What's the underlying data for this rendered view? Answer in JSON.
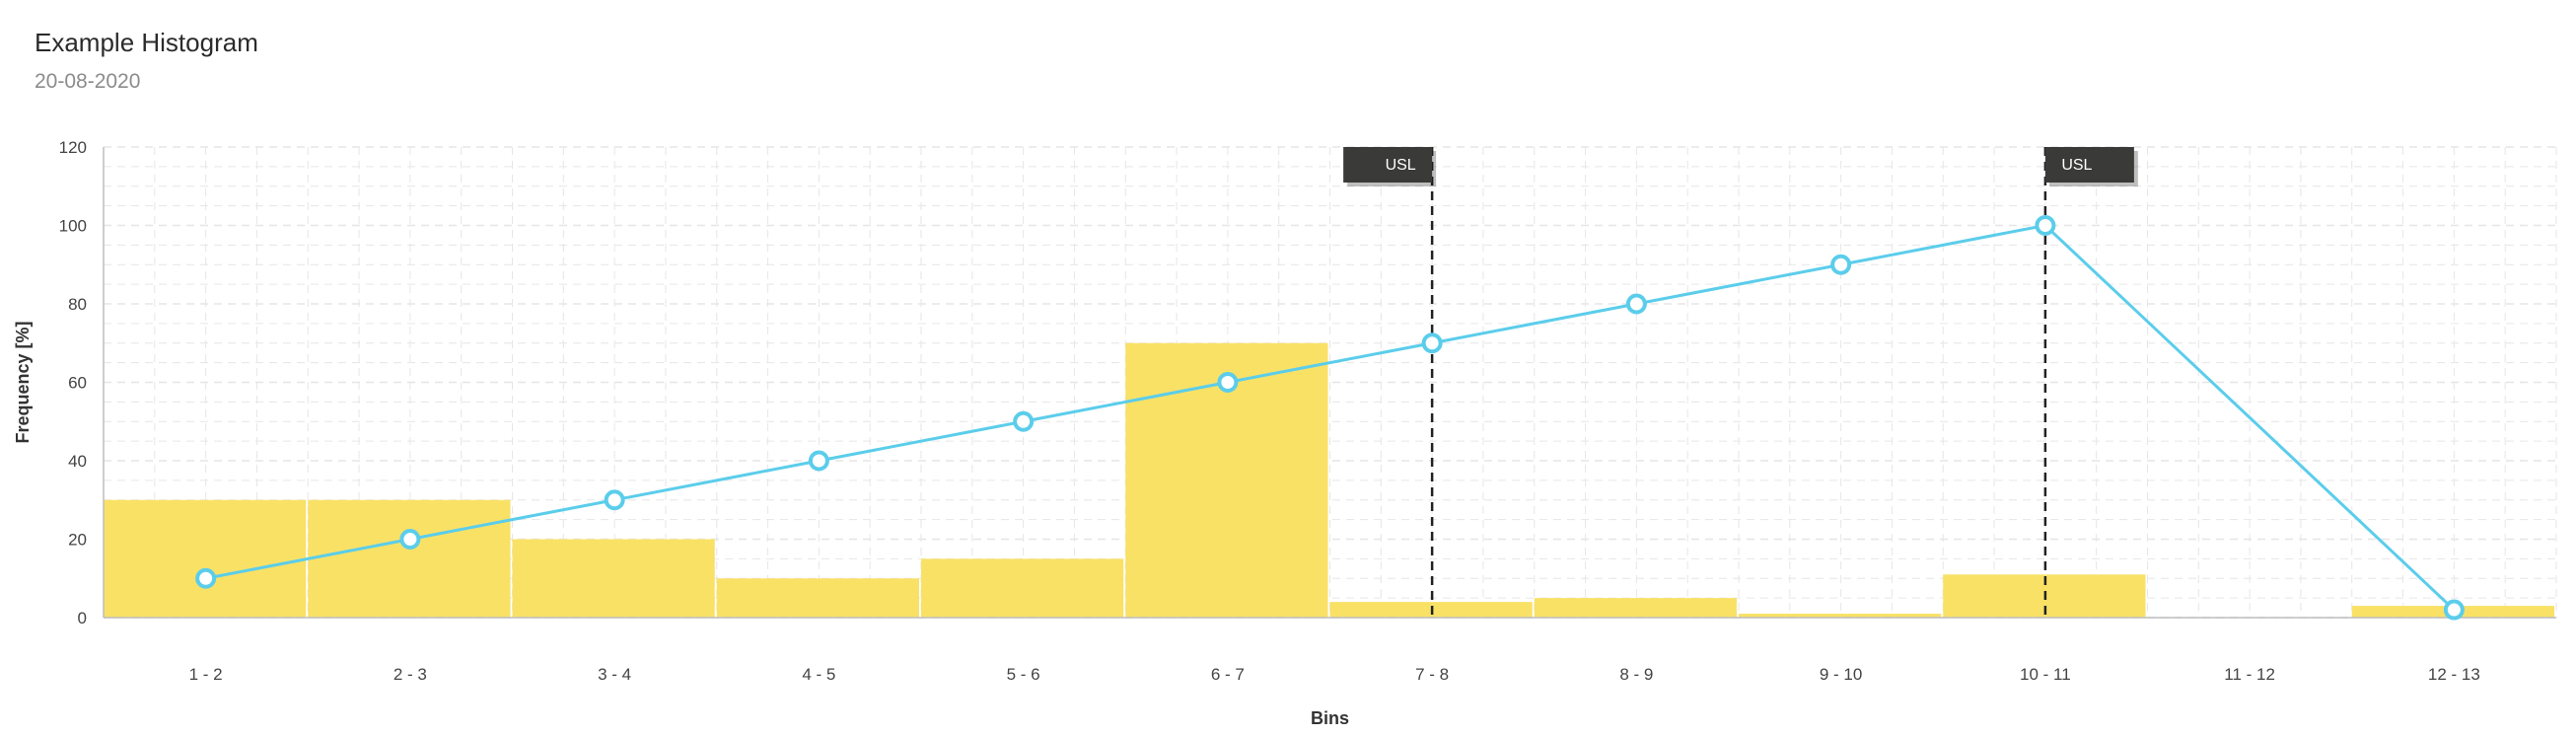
{
  "header": {
    "title": "Example Histogram",
    "subtitle": "20-08-2020"
  },
  "colors": {
    "bar": "#F9E166",
    "line": "#5BCDEB",
    "marker_label_bg": "#3A3A38",
    "grid": "#e6e6e6"
  },
  "chart_data": {
    "type": "bar",
    "categories": [
      "1 - 2",
      "2 - 3",
      "3 - 4",
      "4 - 5",
      "5 - 6",
      "6 - 7",
      "7 - 8",
      "8 - 9",
      "9 - 10",
      "10 - 11",
      "11 - 12",
      "12 - 13"
    ],
    "series": [
      {
        "type": "bar",
        "values": [
          30,
          30,
          20,
          10,
          15,
          70,
          4,
          5,
          1,
          11,
          0,
          3
        ]
      },
      {
        "type": "line",
        "values": [
          10,
          20,
          30,
          40,
          50,
          60,
          70,
          80,
          90,
          100,
          null,
          2
        ]
      }
    ],
    "xlabel": "Bins",
    "ylabel": "Frequency [%]",
    "ylim": [
      0,
      120
    ],
    "yticks": [
      0,
      20,
      40,
      60,
      80,
      100,
      120
    ],
    "grid": true,
    "markers": [
      {
        "label": "USL",
        "x": 7.5
      },
      {
        "label": "USL",
        "x": 10.5
      }
    ]
  }
}
